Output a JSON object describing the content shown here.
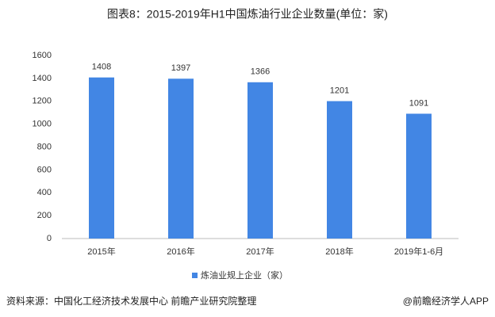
{
  "chart_data": {
    "type": "bar",
    "title": "图表8：2015-2019年H1中国炼油行业企业数量(单位：家)",
    "categories": [
      "2015年",
      "2016年",
      "2017年",
      "2018年",
      "2019年1-6月"
    ],
    "series": [
      {
        "name": "炼油业规上企业（家）",
        "color": "#4286e4",
        "values": [
          1408,
          1397,
          1366,
          1201,
          1091
        ]
      }
    ],
    "ylim": [
      0,
      1600
    ],
    "yticks": [
      0,
      200,
      400,
      600,
      800,
      1000,
      1200,
      1400,
      1600
    ],
    "grid": false,
    "legend": "bottom",
    "source": "资料来源：中国化工经济技术发展中心 前瞻产业研究院整理",
    "credit": "@前瞻经济学人APP"
  }
}
